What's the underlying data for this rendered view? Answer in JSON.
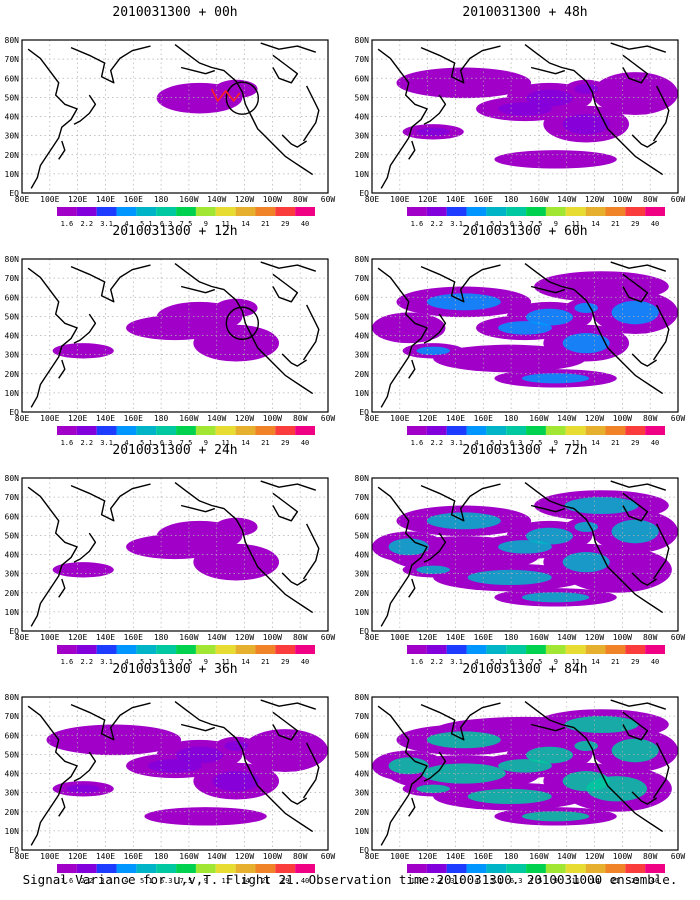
{
  "figure": {
    "caption": "Signal Variance for u,v,T. Flight 21. Observation time 2010031300. 2010031000 ensemble."
  },
  "colors": {
    "background": "#ffffff",
    "coast": "#000000",
    "grid": "#b0b0b0",
    "marker_red": "#ff2020"
  },
  "map": {
    "lat_labels": [
      "80N",
      "70N",
      "60N",
      "50N",
      "40N",
      "30N",
      "20N",
      "10N",
      "EQ"
    ],
    "lon_labels": [
      "80E",
      "100E",
      "120E",
      "140E",
      "160E",
      "180",
      "160W",
      "140W",
      "120W",
      "100W",
      "80W",
      "60W"
    ]
  },
  "colorbar": {
    "labels": [
      "1.6",
      "2.2",
      "3.1",
      "4",
      "5.1",
      "6.3",
      "7.5",
      "9",
      "11",
      "14",
      "21",
      "29",
      "40"
    ],
    "colors": [
      "#a000c8",
      "#8200dc",
      "#1e3cff",
      "#0096ff",
      "#00b4c8",
      "#00c8a0",
      "#00d250",
      "#a0e632",
      "#e6dc32",
      "#e6af2d",
      "#f08228",
      "#fa3c3c",
      "#f00082"
    ]
  },
  "panels": [
    {
      "title": "2010031300 + 00h",
      "level": 0
    },
    {
      "title": "2010031300 + 48h",
      "level": 2
    },
    {
      "title": "2010031300 + 12h",
      "level": 1
    },
    {
      "title": "2010031300 + 60h",
      "level": 3
    },
    {
      "title": "2010031300 + 24h",
      "level": 1
    },
    {
      "title": "2010031300 + 72h",
      "level": 4
    },
    {
      "title": "2010031300 + 36h",
      "level": 2
    },
    {
      "title": "2010031300 + 84h",
      "level": 5
    }
  ]
}
